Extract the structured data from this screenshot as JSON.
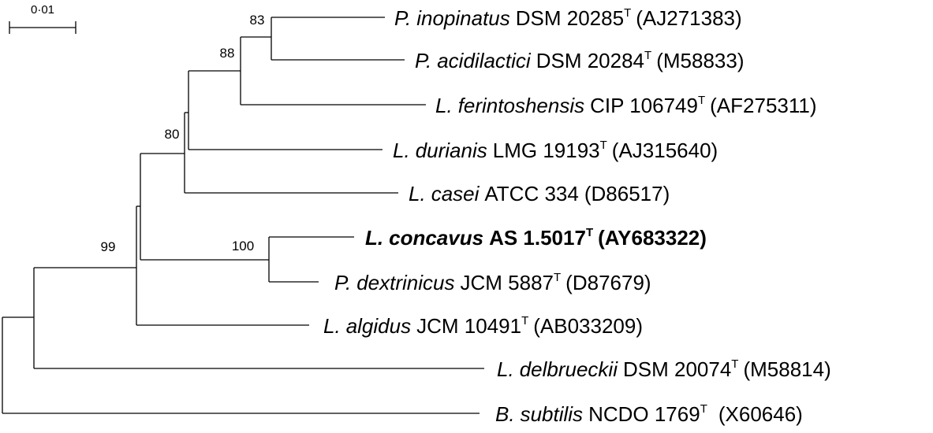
{
  "scale_bar": {
    "label": "0·01"
  },
  "taxa": [
    {
      "id": "p-inopinatus",
      "genus": "P.",
      "species": "inopinatus",
      "strain": "DSM 20285",
      "type_mark": "T",
      "accession": "(AJ271383)",
      "bold": false
    },
    {
      "id": "p-acidilactici",
      "genus": "P.",
      "species": "acidilactici",
      "strain": "DSM 20284",
      "type_mark": "T",
      "accession": "(M58833)",
      "bold": false
    },
    {
      "id": "l-ferintoshensis",
      "genus": "L.",
      "species": "ferintoshensis",
      "strain": "CIP 106749",
      "type_mark": "T",
      "accession": "(AF275311)",
      "bold": false
    },
    {
      "id": "l-durianis",
      "genus": "L.",
      "species": "durianis",
      "strain": "LMG 19193",
      "type_mark": "T",
      "accession": "(AJ315640)",
      "bold": false
    },
    {
      "id": "l-casei",
      "genus": "L.",
      "species": "casei",
      "strain": "ATCC 334",
      "type_mark": "",
      "accession": "(D86517)",
      "bold": false
    },
    {
      "id": "l-concavus",
      "genus": "L.",
      "species": "concavus",
      "strain": "AS 1.5017",
      "type_mark": "T",
      "accession": "(AY683322)",
      "bold": true
    },
    {
      "id": "p-dextrinicus",
      "genus": "P.",
      "species": "dextrinicus",
      "strain": "JCM 5887",
      "type_mark": "T",
      "accession": "(D87679)",
      "bold": false
    },
    {
      "id": "l-algidus",
      "genus": "L.",
      "species": "algidus",
      "strain": "JCM 10491",
      "type_mark": "T",
      "accession": "(AB033209)",
      "bold": false
    },
    {
      "id": "l-delbrueckii",
      "genus": "L.",
      "species": "delbrueckii",
      "strain": "DSM 20074",
      "type_mark": "T",
      "accession": "(M58814)",
      "bold": false
    },
    {
      "id": "b-subtilis",
      "genus": "B.",
      "species": "subtilis",
      "strain": "NCDO 1769",
      "type_mark": "T",
      "accession": "(X60646)",
      "bold": false
    }
  ],
  "bootstrap_values": [
    "83",
    "88",
    "80",
    "100",
    "99"
  ]
}
